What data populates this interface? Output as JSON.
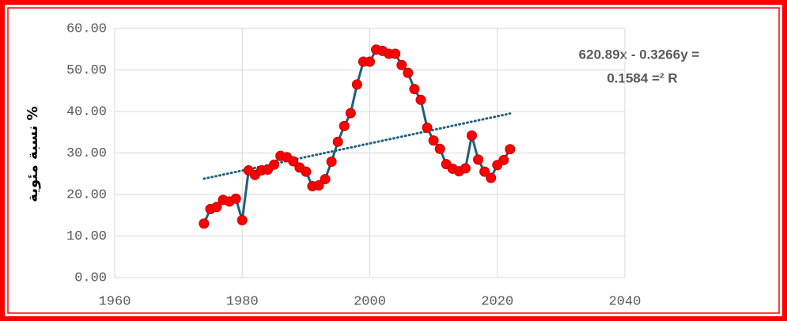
{
  "chart_data": {
    "type": "line",
    "x": [
      1974,
      1975,
      1976,
      1977,
      1978,
      1979,
      1980,
      1981,
      1982,
      1983,
      1984,
      1985,
      1986,
      1987,
      1988,
      1989,
      1990,
      1991,
      1992,
      1993,
      1994,
      1995,
      1996,
      1997,
      1998,
      1999,
      2000,
      2001,
      2002,
      2003,
      2004,
      2005,
      2006,
      2007,
      2008,
      2009,
      2010,
      2011,
      2012,
      2013,
      2014,
      2015,
      2016,
      2017,
      2018,
      2019,
      2020,
      2021,
      2022
    ],
    "values": [
      13.0,
      16.5,
      17.0,
      18.7,
      18.3,
      19.0,
      13.8,
      25.8,
      24.7,
      25.8,
      26.0,
      27.2,
      29.3,
      29.0,
      28.0,
      26.5,
      25.5,
      22.0,
      22.2,
      23.7,
      27.9,
      32.7,
      36.5,
      39.6,
      46.5,
      52.0,
      52.0,
      54.9,
      54.6,
      53.9,
      53.9,
      51.2,
      49.3,
      45.4,
      42.8,
      36.1,
      33.0,
      31.0,
      27.3,
      26.2,
      25.6,
      26.3,
      34.2,
      28.4,
      25.5,
      24.0,
      27.1,
      28.3,
      30.9
    ],
    "color": "#1f5f7f",
    "marker_color": "#ff0000",
    "trendline": {
      "x": [
        1974,
        2022
      ],
      "values": [
        23.8,
        39.5
      ],
      "color": "#1f5f7f"
    },
    "annotations": [
      "620.89x - 0.3266y =",
      "0.1584 =² R"
    ],
    "ylabel": "نسبة مئوية %",
    "xlim": [
      1960,
      2040
    ],
    "xticks": [
      1960,
      1980,
      2000,
      2020,
      2040
    ],
    "ylim": [
      0,
      60
    ],
    "yticks": [
      {
        "value": 0,
        "label": "0.00"
      },
      {
        "value": 10,
        "label": "10.00"
      },
      {
        "value": 20,
        "label": "20.00"
      },
      {
        "value": 30,
        "label": "30.00"
      },
      {
        "value": 40,
        "label": "40.00"
      },
      {
        "value": 50,
        "label": "50.00"
      },
      {
        "value": 60,
        "label": "60.00"
      }
    ],
    "grid": true
  }
}
